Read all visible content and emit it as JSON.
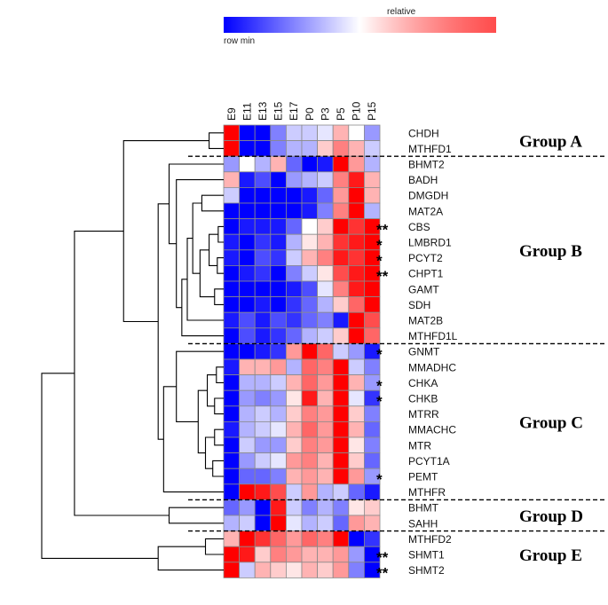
{
  "chart_data": {
    "type": "heatmap",
    "legend": {
      "min_label": "row min",
      "mid_label": "relative",
      "colors": [
        "#0000ff",
        "#ffffff",
        "#ff0000"
      ]
    },
    "columns": [
      "E9",
      "E11",
      "E13",
      "E15",
      "E17",
      "P0",
      "P3",
      "P5",
      "P10",
      "P15"
    ],
    "rows": [
      "CHDH",
      "MTHFD1",
      "BHMT2",
      "BADH",
      "DMGDH",
      "MAT2A",
      "CBS",
      "LMBRD1",
      "PCYT2",
      "CHPT1",
      "GAMT",
      "SDH",
      "MAT2B",
      "MTHFD1L",
      "GNMT",
      "MMADHC",
      "CHKA",
      "CHKB",
      "MTRR",
      "MMACHC",
      "MTR",
      "PCYT1A",
      "PEMT",
      "MTHFR",
      "BHMT",
      "SAHH",
      "MTHFD2",
      "SHMT1",
      "SHMT2"
    ],
    "significance": [
      "",
      "",
      "",
      "",
      "",
      "",
      "**",
      "*",
      "*",
      "**",
      "",
      "",
      "",
      "",
      "*",
      "",
      "*",
      "*",
      "",
      "",
      "",
      "",
      "*",
      "",
      "",
      "",
      "",
      "**",
      "**"
    ],
    "values": [
      [
        1.0,
        -1.0,
        -1.0,
        -0.5,
        -0.2,
        -0.2,
        -0.1,
        0.3,
        0.0,
        -0.4
      ],
      [
        1.0,
        -1.0,
        -1.0,
        -0.5,
        -0.3,
        -0.3,
        0.2,
        0.5,
        0.3,
        -0.2
      ],
      [
        -0.4,
        0.0,
        -0.3,
        0.3,
        -0.6,
        -1.0,
        -0.9,
        1.0,
        0.4,
        -0.3
      ],
      [
        0.3,
        -0.9,
        -0.7,
        -1.0,
        -0.4,
        -0.3,
        -0.2,
        0.5,
        0.9,
        0.3
      ],
      [
        -0.2,
        -1.0,
        -1.0,
        -1.0,
        -1.0,
        -0.9,
        -0.6,
        0.4,
        1.0,
        0.3
      ],
      [
        -1.0,
        -1.0,
        -1.0,
        -1.0,
        -1.0,
        -0.9,
        -0.5,
        0.5,
        1.0,
        -0.3
      ],
      [
        -1.0,
        -0.9,
        -0.9,
        -0.9,
        -0.6,
        0.0,
        0.2,
        1.0,
        0.8,
        1.0
      ],
      [
        -0.9,
        -1.0,
        -0.8,
        -0.9,
        -0.3,
        0.1,
        0.3,
        0.8,
        0.9,
        1.0
      ],
      [
        -0.9,
        -1.0,
        -0.7,
        -0.8,
        -0.2,
        0.3,
        0.5,
        0.9,
        0.8,
        1.0
      ],
      [
        -1.0,
        -0.9,
        -0.8,
        -1.0,
        -0.5,
        -0.2,
        0.1,
        0.7,
        0.9,
        1.0
      ],
      [
        -1.0,
        -1.0,
        -1.0,
        -1.0,
        -0.9,
        -0.7,
        -0.1,
        0.5,
        0.9,
        1.0
      ],
      [
        -1.0,
        -1.0,
        -0.9,
        -1.0,
        -0.8,
        -0.6,
        -0.3,
        0.2,
        0.6,
        1.0
      ],
      [
        -0.9,
        -0.7,
        -0.9,
        -0.7,
        -0.8,
        -0.6,
        -0.5,
        -0.9,
        1.0,
        0.7
      ],
      [
        -1.0,
        -0.7,
        -0.9,
        -0.8,
        -0.6,
        -0.3,
        -0.2,
        0.2,
        1.0,
        0.6
      ],
      [
        -1.0,
        -1.0,
        -0.9,
        -0.8,
        0.4,
        1.0,
        0.6,
        -0.2,
        -0.4,
        -0.9
      ],
      [
        -0.9,
        0.3,
        0.3,
        0.4,
        -0.3,
        0.6,
        0.5,
        1.0,
        -0.2,
        -0.5
      ],
      [
        -1.0,
        -0.3,
        -0.3,
        -0.2,
        0.3,
        0.6,
        0.4,
        1.0,
        0.3,
        -0.4
      ],
      [
        -1.0,
        -0.4,
        -0.5,
        -0.4,
        0.1,
        0.9,
        0.3,
        1.0,
        -0.1,
        -0.8
      ],
      [
        -1.0,
        -0.3,
        -0.2,
        -0.3,
        0.2,
        0.5,
        0.4,
        1.0,
        0.2,
        -0.5
      ],
      [
        -0.9,
        -0.3,
        -0.2,
        -0.1,
        0.3,
        0.6,
        0.4,
        1.0,
        0.3,
        -0.6
      ],
      [
        -1.0,
        -0.2,
        -0.4,
        -0.4,
        0.2,
        0.5,
        0.4,
        1.0,
        0.1,
        -0.5
      ],
      [
        -1.0,
        -0.4,
        -0.2,
        -0.1,
        0.4,
        0.5,
        0.3,
        1.0,
        0.2,
        -0.6
      ],
      [
        -1.0,
        -0.6,
        -0.6,
        -0.5,
        0.3,
        0.4,
        0.3,
        1.0,
        0.4,
        -0.4
      ],
      [
        -1.0,
        1.0,
        0.9,
        0.7,
        -0.2,
        0.4,
        -0.3,
        -0.2,
        -0.6,
        -0.9
      ],
      [
        -0.6,
        -0.4,
        -1.0,
        0.9,
        -0.2,
        -0.5,
        -0.3,
        -0.5,
        0.1,
        0.2
      ],
      [
        -0.3,
        -0.2,
        -1.0,
        1.0,
        -0.1,
        -0.3,
        -0.2,
        -0.6,
        0.4,
        0.3
      ],
      [
        0.3,
        1.0,
        0.8,
        0.6,
        0.4,
        0.6,
        0.5,
        1.0,
        -1.0,
        -0.8
      ],
      [
        1.0,
        0.9,
        0.2,
        0.5,
        0.4,
        0.3,
        0.3,
        0.4,
        -0.4,
        -1.0
      ],
      [
        1.0,
        -0.2,
        0.3,
        0.2,
        0.1,
        0.3,
        0.2,
        0.4,
        -0.5,
        -1.0
      ]
    ],
    "groups": [
      {
        "label": "Group A",
        "start": 0,
        "end": 1
      },
      {
        "label": "Group B",
        "start": 2,
        "end": 13
      },
      {
        "label": "Group C",
        "start": 14,
        "end": 23
      },
      {
        "label": "Group D",
        "start": 24,
        "end": 25
      },
      {
        "label": "Group E",
        "start": 26,
        "end": 28
      }
    ],
    "dendrogram": [
      [
        0,
        1,
        0.08
      ],
      [
        26,
        27,
        0.1
      ],
      [
        24,
        25,
        0.3
      ],
      [
        6,
        7,
        0.03
      ],
      [
        8,
        9,
        0.035
      ],
      [
        10,
        11,
        0.05
      ],
      [
        -4,
        -5,
        0.08
      ],
      [
        -7,
        -6,
        0.13
      ],
      [
        4,
        5,
        0.12
      ],
      [
        -9,
        -8,
        0.17
      ],
      [
        -10,
        12,
        0.2
      ],
      [
        -11,
        13,
        0.23
      ],
      [
        -12,
        3,
        0.26
      ],
      [
        -13,
        2,
        0.3
      ],
      [
        15,
        16,
        0.04
      ],
      [
        17,
        18,
        0.05
      ],
      [
        19,
        20,
        0.05
      ],
      [
        21,
        22,
        0.06
      ],
      [
        -15,
        -16,
        0.09
      ],
      [
        -17,
        -18,
        0.1
      ],
      [
        -19,
        -20,
        0.14
      ],
      [
        -21,
        14,
        0.26
      ],
      [
        -22,
        23,
        0.33
      ],
      [
        -23,
        -14,
        0.36
      ],
      [
        -24,
        -1,
        0.55
      ],
      [
        28,
        -2,
        0.36
      ],
      [
        -25,
        -3,
        0.82
      ],
      [
        -27,
        -26,
        1.0
      ]
    ]
  }
}
